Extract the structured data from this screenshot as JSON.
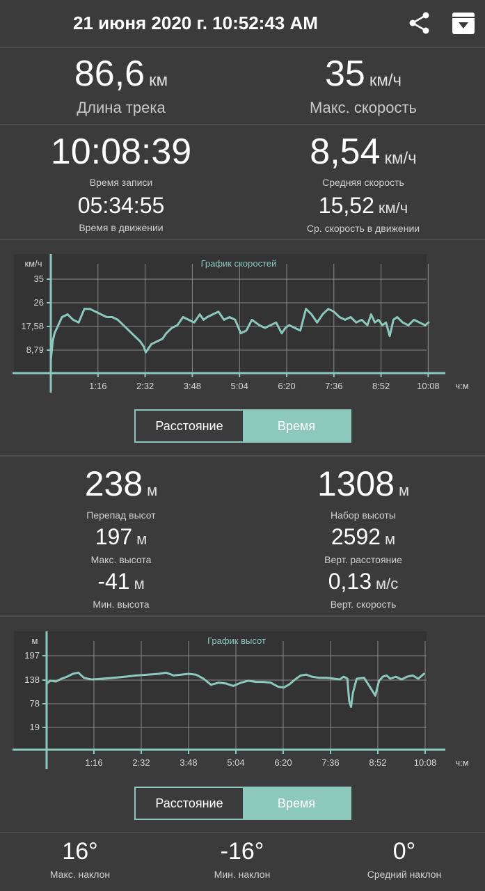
{
  "header": {
    "title": "21 июня 2020 г. 10:52:43 AM",
    "share_icon": "share-icon",
    "archive_icon": "archive-download-icon"
  },
  "summary": {
    "track_length": {
      "value": "86,6",
      "unit": "км",
      "label": "Длина трека"
    },
    "max_speed": {
      "value": "35",
      "unit": "км/ч",
      "label": "Макс. скорость"
    },
    "record_time": {
      "value": "10:08:39",
      "label": "Время записи"
    },
    "avg_speed": {
      "value": "8,54",
      "unit": "км/ч",
      "label": "Средняя скорость"
    },
    "moving_time": {
      "value": "05:34:55",
      "label": "Время в движении"
    },
    "moving_avg_speed": {
      "value": "15,52",
      "unit": "км/ч",
      "label": "Ср. скорость в движении"
    }
  },
  "speed_chart": {
    "title": "График скоростей",
    "y_unit": "км/ч",
    "x_unit": "ч:м",
    "y_ticks": [
      "35",
      "26",
      "17,58",
      "8,79"
    ],
    "x_ticks": [
      "1:16",
      "2:32",
      "3:48",
      "5:04",
      "6:20",
      "7:36",
      "8:52",
      "10:08"
    ],
    "toggle": {
      "distance": "Расстояние",
      "time": "Время",
      "selected": "time"
    }
  },
  "elevation": {
    "elev_diff": {
      "value": "238",
      "unit": "м",
      "label": "Перепад высот"
    },
    "elev_gain": {
      "value": "1308",
      "unit": "м",
      "label": "Набор высоты"
    },
    "max_alt": {
      "value": "197",
      "unit": "м",
      "label": "Макс. высота"
    },
    "vert_dist": {
      "value": "2592",
      "unit": "м",
      "label": "Верт. расстояние"
    },
    "min_alt": {
      "value": "-41",
      "unit": "м",
      "label": "Мин. высота"
    },
    "vert_speed": {
      "value": "0,13",
      "unit": "м/с",
      "label": "Верт. скорость"
    }
  },
  "elevation_chart": {
    "title": "График высот",
    "y_unit": "м",
    "x_unit": "ч:м",
    "y_ticks": [
      "197",
      "138",
      "78",
      "19"
    ],
    "x_ticks": [
      "1:16",
      "2:32",
      "3:48",
      "5:04",
      "6:20",
      "7:36",
      "8:52",
      "10:08"
    ],
    "toggle": {
      "distance": "Расстояние",
      "time": "Время",
      "selected": "time"
    }
  },
  "slope": {
    "max": {
      "value": "16°",
      "label": "Макс. наклон"
    },
    "min": {
      "value": "-16°",
      "label": "Мин. наклон"
    },
    "avg": {
      "value": "0°",
      "label": "Средний наклон"
    }
  },
  "colors": {
    "background": "#3b3b3b",
    "accent": "#8cc8bc",
    "grid": "#8a8a8a"
  },
  "chart_data": [
    {
      "type": "line",
      "title": "График скоростей",
      "xlabel": "ч:м",
      "ylabel": "км/ч",
      "x_ticks": [
        "1:16",
        "2:32",
        "3:48",
        "5:04",
        "6:20",
        "7:36",
        "8:52",
        "10:08"
      ],
      "ylim": [
        0,
        35
      ],
      "x_hours": [
        0,
        0.05,
        0.1,
        0.2,
        0.3,
        0.45,
        0.6,
        0.75,
        0.9,
        1.05,
        1.2,
        1.35,
        1.5,
        1.65,
        1.8,
        1.95,
        2.1,
        2.25,
        2.4,
        2.5,
        2.55,
        2.7,
        2.85,
        3.0,
        3.1,
        3.25,
        3.4,
        3.55,
        3.7,
        3.85,
        4.0,
        4.1,
        4.2,
        4.35,
        4.5,
        4.65,
        4.8,
        4.95,
        5.1,
        5.25,
        5.4,
        5.5,
        5.6,
        5.75,
        5.9,
        6.05,
        6.2,
        6.3,
        6.4,
        6.55,
        6.7,
        6.85,
        7.0,
        7.15,
        7.3,
        7.45,
        7.6,
        7.75,
        7.9,
        8.05,
        8.2,
        8.35,
        8.5,
        8.6,
        8.7,
        8.8,
        8.9,
        9.0,
        9.1,
        9.2,
        9.3,
        9.45,
        9.6,
        9.75,
        9.9,
        10.05,
        10.14
      ],
      "values": [
        5,
        12,
        15,
        18,
        21,
        22,
        20,
        19,
        24,
        24,
        23,
        22,
        21,
        21,
        20,
        18,
        16,
        14,
        12,
        10,
        8,
        11,
        12,
        13,
        15,
        17,
        18,
        21,
        20,
        19,
        22,
        20,
        21,
        22,
        23,
        20,
        21,
        20,
        15,
        16,
        20,
        19,
        18,
        17,
        18,
        19,
        15,
        17,
        18,
        17,
        16,
        24,
        22,
        19,
        22,
        24,
        23,
        21,
        20,
        21,
        19,
        20,
        18,
        22,
        19,
        20,
        18,
        19,
        14,
        20,
        21,
        19,
        18,
        20,
        19,
        18,
        19
      ]
    },
    {
      "type": "line",
      "title": "График высот",
      "xlabel": "ч:м",
      "ylabel": "м",
      "x_ticks": [
        "1:16",
        "2:32",
        "3:48",
        "5:04",
        "6:20",
        "7:36",
        "8:52",
        "10:08"
      ],
      "ylim": [
        -41,
        197
      ],
      "x_hours": [
        0,
        0.1,
        0.25,
        0.4,
        0.55,
        0.7,
        0.85,
        1.0,
        1.2,
        1.5,
        1.8,
        2.1,
        2.4,
        2.7,
        3.0,
        3.2,
        3.4,
        3.6,
        3.8,
        4.0,
        4.2,
        4.4,
        4.6,
        4.8,
        5.0,
        5.2,
        5.4,
        5.6,
        5.8,
        6.0,
        6.2,
        6.35,
        6.5,
        6.65,
        6.8,
        6.95,
        7.1,
        7.3,
        7.5,
        7.7,
        7.85,
        7.95,
        8.05,
        8.1,
        8.15,
        8.2,
        8.3,
        8.5,
        8.65,
        8.8,
        8.9,
        9.0,
        9.1,
        9.2,
        9.35,
        9.5,
        9.65,
        9.8,
        9.95,
        10.1
      ],
      "values": [
        128,
        135,
        133,
        140,
        145,
        152,
        155,
        142,
        138,
        140,
        142,
        145,
        148,
        150,
        152,
        155,
        148,
        150,
        152,
        150,
        140,
        125,
        130,
        128,
        122,
        130,
        135,
        132,
        132,
        130,
        120,
        118,
        126,
        138,
        148,
        150,
        145,
        142,
        142,
        140,
        138,
        145,
        140,
        85,
        70,
        105,
        140,
        142,
        120,
        98,
        135,
        145,
        148,
        140,
        145,
        138,
        145,
        148,
        140,
        152
      ]
    }
  ]
}
